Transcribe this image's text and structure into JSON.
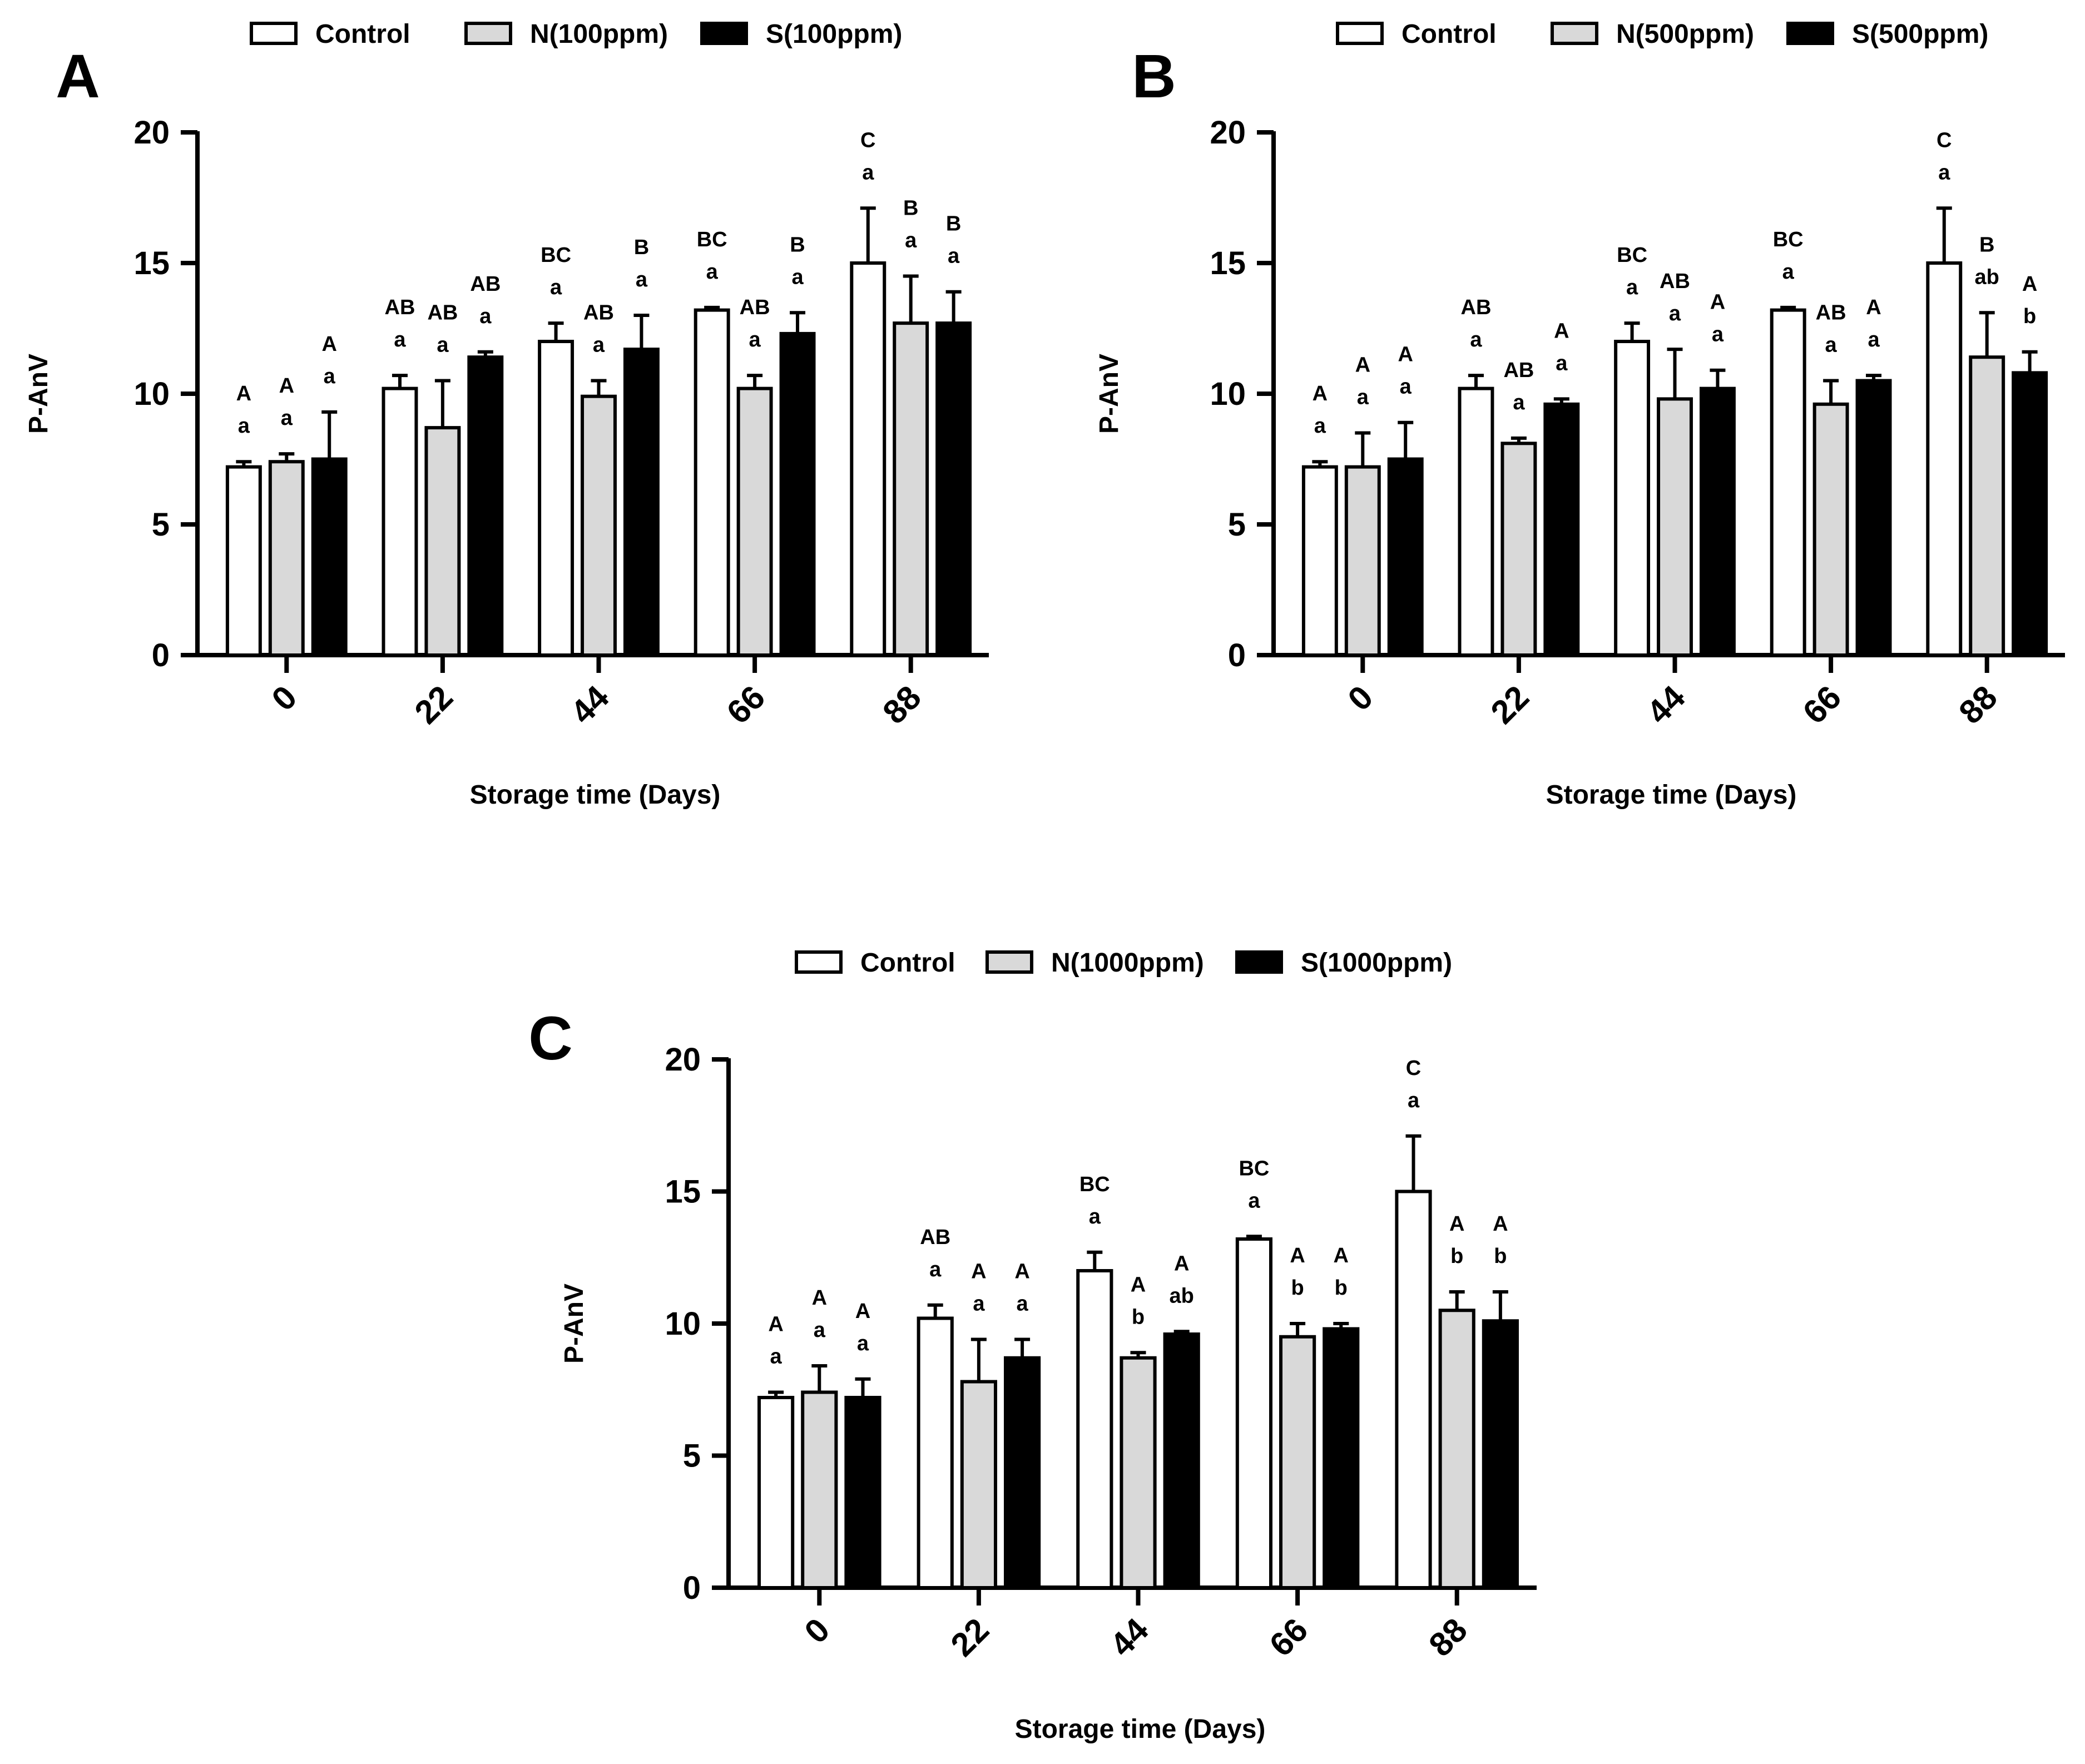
{
  "chart_data": [
    {
      "panel_letter": "A",
      "type": "bar",
      "xlabel": "Storage time (Days)",
      "ylabel": "P-AnV",
      "ylim": [
        0,
        20
      ],
      "yticks": [
        "0",
        "5",
        "10",
        "15",
        "20"
      ],
      "categories": [
        "0",
        "22",
        "44",
        "66",
        "88"
      ],
      "legend_position": "top",
      "series": [
        {
          "name": "Control",
          "fill": "#ffffff",
          "values": [
            7.2,
            10.2,
            12.0,
            13.2,
            15.0
          ],
          "errors": [
            0.2,
            0.5,
            0.7,
            0.1,
            2.1
          ],
          "upper_labels": [
            "A",
            "AB",
            "BC",
            "BC",
            "C"
          ],
          "lower_labels": [
            "a",
            "a",
            "a",
            "a",
            "a"
          ]
        },
        {
          "name": "N(100ppm)",
          "fill": "#d9d9d9",
          "values": [
            7.4,
            8.7,
            9.9,
            10.2,
            12.7
          ],
          "errors": [
            0.3,
            1.8,
            0.6,
            0.5,
            1.8
          ],
          "upper_labels": [
            "A",
            "AB",
            "AB",
            "AB",
            "B"
          ],
          "lower_labels": [
            "a",
            "a",
            "a",
            "a",
            "a"
          ]
        },
        {
          "name": "S(100ppm)",
          "fill": "#000000",
          "values": [
            7.5,
            11.4,
            11.7,
            12.3,
            12.7
          ],
          "errors": [
            1.8,
            0.2,
            1.3,
            0.8,
            1.2
          ],
          "upper_labels": [
            "A",
            "AB",
            "B",
            "B",
            "B"
          ],
          "lower_labels": [
            "a",
            "a",
            "a",
            "a",
            "a"
          ]
        }
      ]
    },
    {
      "panel_letter": "B",
      "type": "bar",
      "xlabel": "Storage time (Days)",
      "ylabel": "P-AnV",
      "ylim": [
        0,
        20
      ],
      "yticks": [
        "0",
        "5",
        "10",
        "15",
        "20"
      ],
      "categories": [
        "0",
        "22",
        "44",
        "66",
        "88"
      ],
      "legend_position": "top",
      "series": [
        {
          "name": "Control",
          "fill": "#ffffff",
          "values": [
            7.2,
            10.2,
            12.0,
            13.2,
            15.0
          ],
          "errors": [
            0.2,
            0.5,
            0.7,
            0.1,
            2.1
          ],
          "upper_labels": [
            "A",
            "AB",
            "BC",
            "BC",
            "C"
          ],
          "lower_labels": [
            "a",
            "a",
            "a",
            "a",
            "a"
          ]
        },
        {
          "name": "N(500ppm)",
          "fill": "#d9d9d9",
          "values": [
            7.2,
            8.1,
            9.8,
            9.6,
            11.4
          ],
          "errors": [
            1.3,
            0.2,
            1.9,
            0.9,
            1.7
          ],
          "upper_labels": [
            "A",
            "AB",
            "AB",
            "AB",
            "B"
          ],
          "lower_labels": [
            "a",
            "a",
            "a",
            "a",
            "ab"
          ]
        },
        {
          "name": "S(500ppm)",
          "fill": "#000000",
          "values": [
            7.5,
            9.6,
            10.2,
            10.5,
            10.8
          ],
          "errors": [
            1.4,
            0.2,
            0.7,
            0.2,
            0.8
          ],
          "upper_labels": [
            "A",
            "A",
            "A",
            "A",
            "A"
          ],
          "lower_labels": [
            "a",
            "a",
            "a",
            "a",
            "b"
          ]
        }
      ]
    },
    {
      "panel_letter": "C",
      "type": "bar",
      "xlabel": "Storage time (Days)",
      "ylabel": "P-AnV",
      "ylim": [
        0,
        20
      ],
      "yticks": [
        "0",
        "5",
        "10",
        "15",
        "20"
      ],
      "categories": [
        "0",
        "22",
        "44",
        "66",
        "88"
      ],
      "legend_position": "top",
      "series": [
        {
          "name": "Control",
          "fill": "#ffffff",
          "values": [
            7.2,
            10.2,
            12.0,
            13.2,
            15.0
          ],
          "errors": [
            0.2,
            0.5,
            0.7,
            0.1,
            2.1
          ],
          "upper_labels": [
            "A",
            "AB",
            "BC",
            "BC",
            "C"
          ],
          "lower_labels": [
            "a",
            "a",
            "a",
            "a",
            "a"
          ]
        },
        {
          "name": "N(1000ppm)",
          "fill": "#d9d9d9",
          "values": [
            7.4,
            7.8,
            8.7,
            9.5,
            10.5
          ],
          "errors": [
            1.0,
            1.6,
            0.2,
            0.5,
            0.7
          ],
          "upper_labels": [
            "A",
            "A",
            "A",
            "A",
            "A"
          ],
          "lower_labels": [
            "a",
            "a",
            "b",
            "b",
            "b"
          ]
        },
        {
          "name": "S(1000ppm)",
          "fill": "#000000",
          "values": [
            7.2,
            8.7,
            9.6,
            9.8,
            10.1
          ],
          "errors": [
            0.7,
            0.7,
            0.1,
            0.2,
            1.1
          ],
          "upper_labels": [
            "A",
            "A",
            "A",
            "A",
            "A"
          ],
          "lower_labels": [
            "a",
            "a",
            "ab",
            "b",
            "b"
          ]
        }
      ]
    }
  ]
}
